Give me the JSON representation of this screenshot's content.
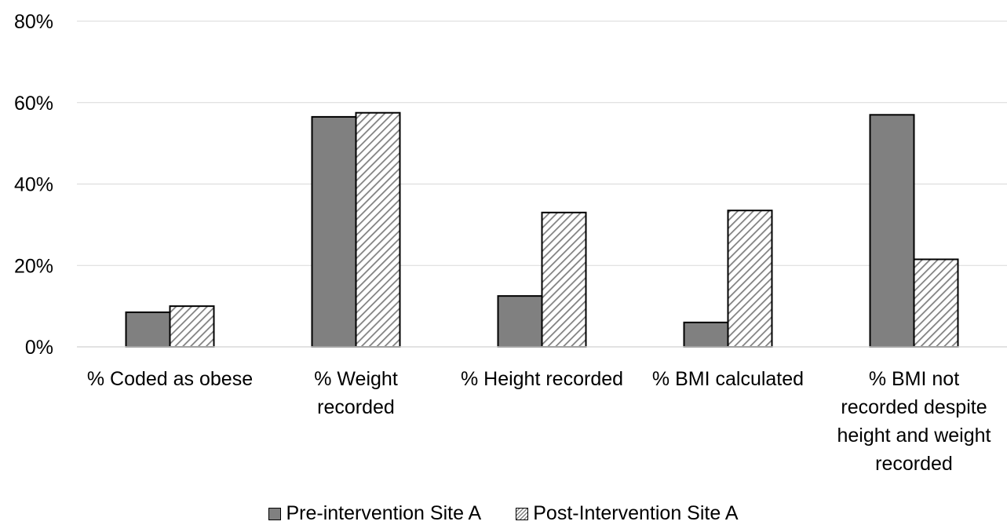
{
  "chart_data": {
    "type": "bar",
    "title": "",
    "xlabel": "",
    "ylabel": "",
    "ylim": [
      0,
      80
    ],
    "y_ticks": [
      "0%",
      "20%",
      "40%",
      "60%",
      "80%"
    ],
    "grid": true,
    "legend_position": "bottom",
    "categories": [
      "% Coded as obese",
      "% Weight recorded",
      "% Height recorded",
      "% BMI calculated",
      "% BMI not recorded despite height and weight recorded"
    ],
    "category_label_lines": [
      [
        "% Coded as obese"
      ],
      [
        "% Weight",
        "recorded"
      ],
      [
        "% Height recorded"
      ],
      [
        "% BMI calculated"
      ],
      [
        "% BMI not",
        "recorded despite",
        "height and weight",
        "recorded"
      ]
    ],
    "series": [
      {
        "name": "Pre-intervention Site A",
        "pattern": "solid",
        "color": "#808080",
        "values": [
          8.5,
          56.5,
          12.5,
          6.0,
          57.0
        ]
      },
      {
        "name": "Post-Intervention Site A",
        "pattern": "diagonal-hatch",
        "color": "#808080",
        "values": [
          10.0,
          57.5,
          33.0,
          33.5,
          21.5
        ]
      }
    ]
  }
}
